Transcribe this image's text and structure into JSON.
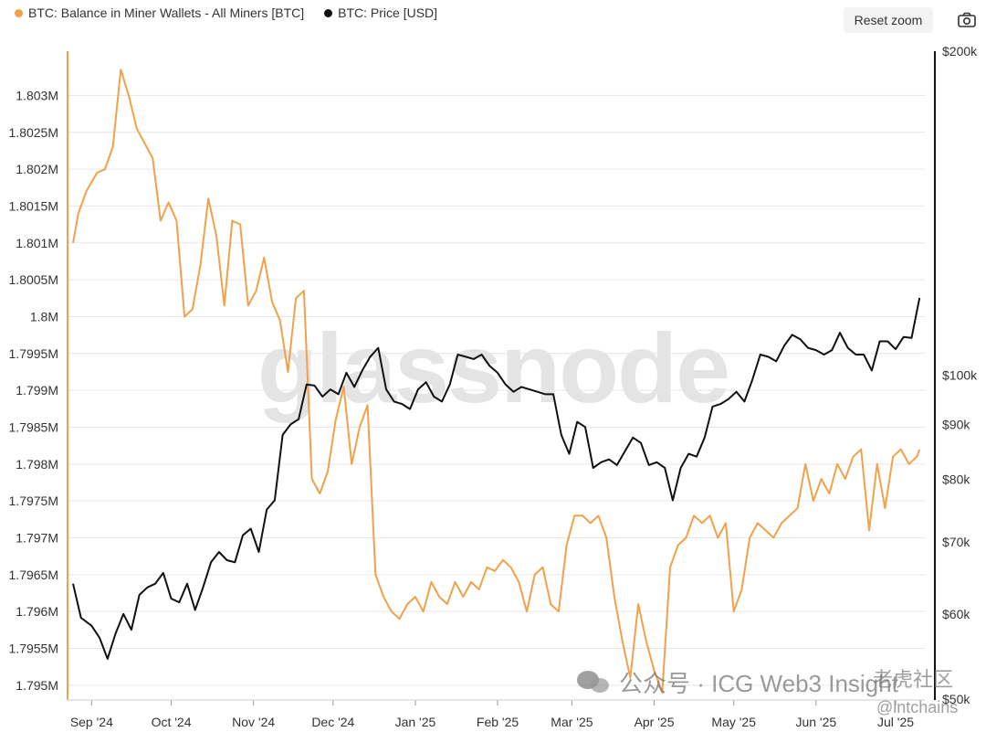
{
  "toolbar": {
    "reset_zoom": "Reset zoom",
    "camera_icon": "camera-icon"
  },
  "watermark": "glassnode",
  "overlay": {
    "wechat": "公众号 · ICG Web3 Insight",
    "tiger": "老虎社区",
    "handle": "@lntchains"
  },
  "colors": {
    "balance": "#f0a24a",
    "price": "#111111",
    "axis_left": "#f0a24a",
    "axis_right": "#111111",
    "grid": "#e6e6e6"
  },
  "chart_data": {
    "type": "line",
    "series": [
      {
        "name": "BTC: Balance in Miner Wallets - All Miners [BTC]",
        "axis": "left",
        "color": "#f0a24a",
        "x": [
          "2024-08-25",
          "2024-08-27",
          "2024-08-30",
          "2024-09-03",
          "2024-09-06",
          "2024-09-09",
          "2024-09-12",
          "2024-09-15",
          "2024-09-18",
          "2024-09-21",
          "2024-09-24",
          "2024-09-27",
          "2024-09-30",
          "2024-10-03",
          "2024-10-06",
          "2024-10-09",
          "2024-10-12",
          "2024-10-15",
          "2024-10-18",
          "2024-10-21",
          "2024-10-24",
          "2024-10-27",
          "2024-10-30",
          "2024-11-02",
          "2024-11-05",
          "2024-11-08",
          "2024-11-11",
          "2024-11-14",
          "2024-11-17",
          "2024-11-20",
          "2024-11-23",
          "2024-11-26",
          "2024-11-29",
          "2024-12-02",
          "2024-12-05",
          "2024-12-08",
          "2024-12-11",
          "2024-12-14",
          "2024-12-17",
          "2024-12-20",
          "2024-12-23",
          "2024-12-26",
          "2024-12-29",
          "2025-01-01",
          "2025-01-04",
          "2025-01-07",
          "2025-01-10",
          "2025-01-13",
          "2025-01-16",
          "2025-01-19",
          "2025-01-22",
          "2025-01-25",
          "2025-01-28",
          "2025-01-31",
          "2025-02-03",
          "2025-02-06",
          "2025-02-09",
          "2025-02-12",
          "2025-02-15",
          "2025-02-18",
          "2025-02-21",
          "2025-02-24",
          "2025-02-27",
          "2025-03-02",
          "2025-03-05",
          "2025-03-08",
          "2025-03-11",
          "2025-03-14",
          "2025-03-17",
          "2025-03-20",
          "2025-03-23",
          "2025-03-26",
          "2025-03-29",
          "2025-04-01",
          "2025-04-04",
          "2025-04-07",
          "2025-04-10",
          "2025-04-13",
          "2025-04-16",
          "2025-04-19",
          "2025-04-22",
          "2025-04-25",
          "2025-04-28",
          "2025-05-01",
          "2025-05-04",
          "2025-05-07",
          "2025-05-10",
          "2025-05-13",
          "2025-05-16",
          "2025-05-19",
          "2025-05-22",
          "2025-05-25",
          "2025-05-28",
          "2025-05-31",
          "2025-06-03",
          "2025-06-06",
          "2025-06-09",
          "2025-06-12",
          "2025-06-15",
          "2025-06-18",
          "2025-06-21",
          "2025-06-24",
          "2025-06-27",
          "2025-06-30",
          "2025-07-03",
          "2025-07-06",
          "2025-07-09",
          "2025-07-10"
        ],
        "values": [
          1.801,
          1.8014,
          1.8017,
          1.80195,
          1.802,
          1.8023,
          1.80335,
          1.803,
          1.80255,
          1.80235,
          1.80215,
          1.8013,
          1.80155,
          1.8013,
          1.8,
          1.8001,
          1.8007,
          1.8016,
          1.8011,
          1.80015,
          1.8013,
          1.80125,
          1.80015,
          1.80035,
          1.8008,
          1.8002,
          1.79995,
          1.79925,
          1.80025,
          1.80035,
          1.7978,
          1.7976,
          1.7979,
          1.7986,
          1.79905,
          1.798,
          1.7985,
          1.7988,
          1.7965,
          1.7962,
          1.796,
          1.7959,
          1.7961,
          1.7962,
          1.796,
          1.7964,
          1.7962,
          1.7961,
          1.7964,
          1.7962,
          1.7964,
          1.7963,
          1.7966,
          1.79655,
          1.7967,
          1.7966,
          1.7964,
          1.796,
          1.7965,
          1.7966,
          1.7961,
          1.796,
          1.7969,
          1.7973,
          1.7973,
          1.7972,
          1.7973,
          1.797,
          1.7962,
          1.7956,
          1.7951,
          1.7961,
          1.7956,
          1.7952,
          1.7949,
          1.7966,
          1.7969,
          1.797,
          1.7973,
          1.7972,
          1.7973,
          1.797,
          1.7972,
          1.796,
          1.7963,
          1.797,
          1.7972,
          1.7971,
          1.797,
          1.7972,
          1.7973,
          1.7974,
          1.798,
          1.7975,
          1.7978,
          1.7976,
          1.798,
          1.7978,
          1.7981,
          1.7982,
          1.7971,
          1.798,
          1.7974,
          1.7981,
          1.7982,
          1.798,
          1.7981,
          1.7982
        ]
      },
      {
        "name": "BTC: Price [USD]",
        "axis": "right",
        "color": "#111111",
        "x": [
          "2024-08-25",
          "2024-08-28",
          "2024-09-01",
          "2024-09-04",
          "2024-09-07",
          "2024-09-10",
          "2024-09-13",
          "2024-09-16",
          "2024-09-19",
          "2024-09-22",
          "2024-09-25",
          "2024-09-28",
          "2024-10-01",
          "2024-10-04",
          "2024-10-07",
          "2024-10-10",
          "2024-10-13",
          "2024-10-16",
          "2024-10-19",
          "2024-10-22",
          "2024-10-25",
          "2024-10-28",
          "2024-10-31",
          "2024-11-03",
          "2024-11-06",
          "2024-11-09",
          "2024-11-12",
          "2024-11-15",
          "2024-11-18",
          "2024-11-21",
          "2024-11-24",
          "2024-11-27",
          "2024-11-30",
          "2024-12-03",
          "2024-12-06",
          "2024-12-09",
          "2024-12-12",
          "2024-12-15",
          "2024-12-18",
          "2024-12-21",
          "2024-12-24",
          "2024-12-27",
          "2024-12-30",
          "2025-01-02",
          "2025-01-05",
          "2025-01-08",
          "2025-01-11",
          "2025-01-14",
          "2025-01-17",
          "2025-01-20",
          "2025-01-23",
          "2025-01-26",
          "2025-01-29",
          "2025-02-01",
          "2025-02-04",
          "2025-02-07",
          "2025-02-10",
          "2025-02-13",
          "2025-02-16",
          "2025-02-19",
          "2025-02-22",
          "2025-02-25",
          "2025-02-28",
          "2025-03-03",
          "2025-03-06",
          "2025-03-09",
          "2025-03-12",
          "2025-03-15",
          "2025-03-18",
          "2025-03-21",
          "2025-03-24",
          "2025-03-27",
          "2025-03-30",
          "2025-04-02",
          "2025-04-05",
          "2025-04-08",
          "2025-04-11",
          "2025-04-14",
          "2025-04-17",
          "2025-04-20",
          "2025-04-23",
          "2025-04-26",
          "2025-04-29",
          "2025-05-02",
          "2025-05-05",
          "2025-05-08",
          "2025-05-11",
          "2025-05-14",
          "2025-05-17",
          "2025-05-20",
          "2025-05-23",
          "2025-05-26",
          "2025-05-29",
          "2025-06-01",
          "2025-06-04",
          "2025-06-07",
          "2025-06-10",
          "2025-06-13",
          "2025-06-16",
          "2025-06-19",
          "2025-06-22",
          "2025-06-25",
          "2025-06-28",
          "2025-07-01",
          "2025-07-04",
          "2025-07-07",
          "2025-07-10"
        ],
        "values": [
          64000,
          59500,
          58500,
          57000,
          54500,
          57500,
          60000,
          58000,
          62500,
          63500,
          64000,
          65500,
          62000,
          61500,
          64000,
          60500,
          63500,
          67000,
          68500,
          67300,
          67000,
          71000,
          72000,
          68500,
          75000,
          76500,
          88000,
          90000,
          91000,
          98000,
          97800,
          95500,
          97000,
          96000,
          100500,
          97500,
          101000,
          104000,
          106000,
          97000,
          94500,
          94000,
          93000,
          97000,
          98500,
          95500,
          94500,
          98000,
          104500,
          104000,
          103500,
          104500,
          102000,
          100500,
          98000,
          96500,
          97500,
          97000,
          96500,
          96000,
          96000,
          88000,
          84500,
          90500,
          89500,
          82000,
          83000,
          83500,
          82500,
          85000,
          87500,
          86500,
          82500,
          83000,
          82000,
          76500,
          82000,
          84500,
          84000,
          87500,
          93500,
          94000,
          95000,
          96500,
          94500,
          99000,
          104500,
          104000,
          103000,
          106500,
          109000,
          108000,
          106000,
          105500,
          104500,
          105500,
          109500,
          106000,
          104500,
          104500,
          101000,
          107500,
          107500,
          105700,
          108500,
          108300,
          118000
        ]
      }
    ],
    "left_axis": {
      "ticks": [
        "1.795M",
        "1.7955M",
        "1.796M",
        "1.7965M",
        "1.797M",
        "1.7975M",
        "1.798M",
        "1.7985M",
        "1.799M",
        "1.7995M",
        "1.8M",
        "1.8005M",
        "1.801M",
        "1.8015M",
        "1.802M",
        "1.8025M",
        "1.803M"
      ],
      "range": [
        1.7948,
        1.8036
      ]
    },
    "right_axis": {
      "scale": "log",
      "ticks": [
        "$50k",
        "$60k",
        "$70k",
        "$80k",
        "$90k",
        "$100k",
        "$200k"
      ],
      "tick_values": [
        50000,
        60000,
        70000,
        80000,
        90000,
        100000,
        200000
      ],
      "range": [
        50000,
        200000
      ]
    },
    "x_axis": {
      "ticks": [
        "Sep '24",
        "Oct '24",
        "Nov '24",
        "Dec '24",
        "Jan '25",
        "Feb '25",
        "Mar '25",
        "Apr '25",
        "May '25",
        "Jun '25",
        "Jul '25"
      ],
      "tick_dates": [
        "2024-09-01",
        "2024-10-01",
        "2024-11-01",
        "2024-12-01",
        "2025-01-01",
        "2025-02-01",
        "2025-03-01",
        "2025-04-01",
        "2025-05-01",
        "2025-06-01",
        "2025-07-01"
      ],
      "range": [
        "2024-08-25",
        "2025-07-12"
      ]
    },
    "grid": true,
    "legend_position": "top-left"
  }
}
